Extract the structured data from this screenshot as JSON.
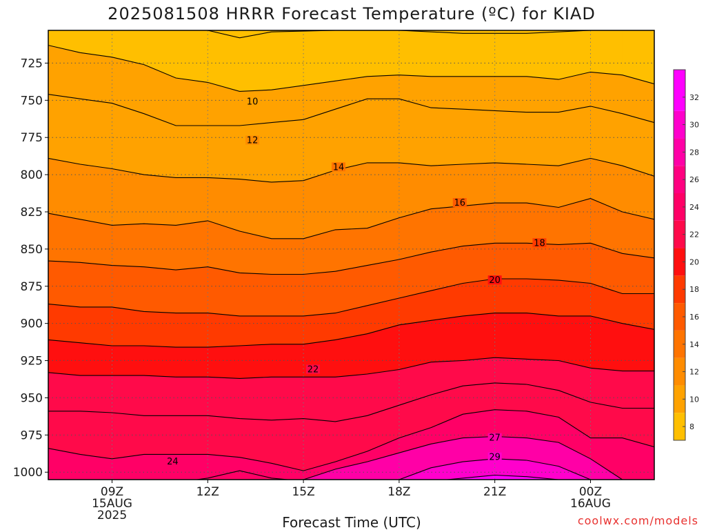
{
  "chart_data": {
    "type": "contour",
    "title": "2025081508 HRRR Forecast Temperature (ºC) for KIAD",
    "xlabel": "Forecast Time (UTC)",
    "ylabel": "",
    "credit": "coolwx.com/models",
    "x_ticks": [
      {
        "value": 9,
        "lines": [
          "09Z",
          "15AUG",
          "2025"
        ]
      },
      {
        "value": 12,
        "lines": [
          "12Z"
        ]
      },
      {
        "value": 15,
        "lines": [
          "15Z"
        ]
      },
      {
        "value": 18,
        "lines": [
          "18Z"
        ]
      },
      {
        "value": 21,
        "lines": [
          "21Z"
        ]
      },
      {
        "value": 24,
        "lines": [
          "00Z",
          "16AUG"
        ]
      }
    ],
    "xlim": [
      7.0,
      26.0
    ],
    "y_ticks": [
      725,
      750,
      775,
      800,
      825,
      850,
      875,
      900,
      925,
      950,
      975,
      1000
    ],
    "ylim": [
      703,
      1005
    ],
    "y_inverted": true,
    "ground_level_hpa": 1005,
    "colorbar": {
      "ticks": [
        8,
        10,
        12,
        14,
        16,
        18,
        20,
        22,
        24,
        26,
        28,
        30,
        32
      ],
      "range": [
        7,
        34
      ],
      "bands": [
        {
          "from": 7,
          "to": 9,
          "color": "#ffbf00"
        },
        {
          "from": 9,
          "to": 11,
          "color": "#ffa200"
        },
        {
          "from": 11,
          "to": 13,
          "color": "#ff8c00"
        },
        {
          "from": 13,
          "to": 15,
          "color": "#ff7400"
        },
        {
          "from": 15,
          "to": 17,
          "color": "#ff5a00"
        },
        {
          "from": 17,
          "to": 19,
          "color": "#ff3a00"
        },
        {
          "from": 19,
          "to": 21,
          "color": "#ff0f0f"
        },
        {
          "from": 21,
          "to": 23,
          "color": "#ff0a4a"
        },
        {
          "from": 23,
          "to": 25,
          "color": "#ff0066"
        },
        {
          "from": 25,
          "to": 27,
          "color": "#ff0080"
        },
        {
          "from": 27,
          "to": 29,
          "color": "#ff00a6"
        },
        {
          "from": 29,
          "to": 31,
          "color": "#ff00cc"
        },
        {
          "from": 31,
          "to": 34,
          "color": "#ff00ff"
        }
      ]
    },
    "isotherms": [
      {
        "value": 8,
        "label_at": null,
        "points": [
          [
            8.5,
            703
          ],
          [
            10,
            703
          ],
          [
            12,
            703
          ],
          [
            13,
            708
          ],
          [
            14,
            704
          ],
          [
            16,
            703
          ],
          [
            18,
            703
          ],
          [
            20,
            705
          ],
          [
            22,
            705
          ],
          [
            24,
            703
          ],
          [
            25,
            703
          ]
        ]
      },
      {
        "value": 9,
        "label_at": null,
        "points": [
          [
            7,
            713
          ],
          [
            8,
            718
          ],
          [
            9,
            721
          ],
          [
            10,
            726
          ],
          [
            11,
            735
          ],
          [
            12,
            738
          ],
          [
            13,
            744
          ],
          [
            14,
            743
          ],
          [
            15,
            740
          ],
          [
            16,
            737
          ],
          [
            17,
            734
          ],
          [
            18,
            733
          ],
          [
            19,
            734
          ],
          [
            20,
            734
          ],
          [
            21,
            734
          ],
          [
            22,
            734
          ],
          [
            23,
            736
          ],
          [
            24,
            731
          ],
          [
            25,
            733
          ],
          [
            26,
            739
          ]
        ]
      },
      {
        "value": 10,
        "label_at": [
          13.4,
          751
        ],
        "points": [
          [
            7,
            746
          ],
          [
            8,
            749
          ],
          [
            9,
            752
          ],
          [
            10,
            759
          ],
          [
            11,
            767
          ],
          [
            12,
            767
          ],
          [
            13,
            767
          ],
          [
            14,
            765
          ],
          [
            15,
            763
          ],
          [
            16,
            756
          ],
          [
            17,
            749
          ],
          [
            18,
            749
          ],
          [
            19,
            755
          ],
          [
            20,
            756
          ],
          [
            21,
            757
          ],
          [
            22,
            758
          ],
          [
            23,
            758
          ],
          [
            24,
            754
          ],
          [
            25,
            759
          ],
          [
            26,
            765
          ]
        ]
      },
      {
        "value": 12,
        "label_at": [
          13.4,
          777
        ],
        "points": [
          [
            7,
            789
          ],
          [
            8,
            793
          ],
          [
            9,
            796
          ],
          [
            10,
            800
          ],
          [
            11,
            802
          ],
          [
            12,
            802
          ],
          [
            13,
            803
          ],
          [
            14,
            805
          ],
          [
            15,
            804
          ],
          [
            16,
            797
          ],
          [
            17,
            792
          ],
          [
            18,
            792
          ],
          [
            19,
            794
          ],
          [
            20,
            793
          ],
          [
            21,
            792
          ],
          [
            22,
            793
          ],
          [
            23,
            794
          ],
          [
            24,
            789
          ],
          [
            25,
            794
          ],
          [
            26,
            801
          ]
        ]
      },
      {
        "value": 14,
        "label_at": [
          16.1,
          795
        ],
        "points": [
          [
            7,
            826
          ],
          [
            8,
            830
          ],
          [
            9,
            834
          ],
          [
            10,
            833
          ],
          [
            11,
            834
          ],
          [
            12,
            831
          ],
          [
            13,
            838
          ],
          [
            14,
            843
          ],
          [
            15,
            843
          ],
          [
            16,
            837
          ],
          [
            17,
            836
          ],
          [
            18,
            829
          ],
          [
            19,
            823
          ],
          [
            20,
            821
          ],
          [
            21,
            819
          ],
          [
            22,
            819
          ],
          [
            23,
            822
          ],
          [
            24,
            816
          ],
          [
            25,
            825
          ],
          [
            26,
            830
          ]
        ]
      },
      {
        "value": 16,
        "label_at": [
          19.9,
          819
        ],
        "points": [
          [
            7,
            858
          ],
          [
            8,
            859
          ],
          [
            9,
            861
          ],
          [
            10,
            862
          ],
          [
            11,
            864
          ],
          [
            12,
            862
          ],
          [
            13,
            866
          ],
          [
            14,
            867
          ],
          [
            15,
            867
          ],
          [
            16,
            865
          ],
          [
            17,
            861
          ],
          [
            18,
            857
          ],
          [
            19,
            852
          ],
          [
            20,
            848
          ],
          [
            21,
            846
          ],
          [
            22,
            846
          ],
          [
            23,
            847
          ],
          [
            24,
            846
          ],
          [
            25,
            853
          ],
          [
            26,
            856
          ]
        ]
      },
      {
        "value": 18,
        "label_at": [
          22.4,
          846
        ],
        "points": [
          [
            7,
            887
          ],
          [
            8,
            889
          ],
          [
            9,
            889
          ],
          [
            10,
            892
          ],
          [
            11,
            893
          ],
          [
            12,
            893
          ],
          [
            13,
            895
          ],
          [
            14,
            895
          ],
          [
            15,
            895
          ],
          [
            16,
            893
          ],
          [
            17,
            888
          ],
          [
            18,
            883
          ],
          [
            19,
            878
          ],
          [
            20,
            873
          ],
          [
            21,
            870
          ],
          [
            22,
            870
          ],
          [
            23,
            871
          ],
          [
            24,
            873
          ],
          [
            25,
            880
          ],
          [
            26,
            880
          ]
        ]
      },
      {
        "value": 20,
        "label_at": [
          21,
          871
        ],
        "points": [
          [
            7,
            911
          ],
          [
            8,
            913
          ],
          [
            9,
            915
          ],
          [
            10,
            915
          ],
          [
            11,
            916
          ],
          [
            12,
            916
          ],
          [
            13,
            915
          ],
          [
            14,
            914
          ],
          [
            15,
            914
          ],
          [
            16,
            911
          ],
          [
            17,
            907
          ],
          [
            18,
            901
          ],
          [
            19,
            898
          ],
          [
            20,
            895
          ],
          [
            21,
            893
          ],
          [
            22,
            893
          ],
          [
            23,
            895
          ],
          [
            24,
            895
          ],
          [
            25,
            900
          ],
          [
            26,
            904
          ]
        ]
      },
      {
        "value": 21,
        "label_at": null,
        "points": [
          [
            7,
            933
          ],
          [
            8,
            935
          ],
          [
            9,
            935
          ],
          [
            10,
            935
          ],
          [
            11,
            936
          ],
          [
            12,
            936
          ],
          [
            13,
            937
          ],
          [
            14,
            936
          ],
          [
            15,
            936
          ],
          [
            16,
            936
          ],
          [
            17,
            934
          ],
          [
            18,
            931
          ],
          [
            19,
            926
          ],
          [
            20,
            925
          ],
          [
            21,
            923
          ],
          [
            22,
            924
          ],
          [
            23,
            925
          ],
          [
            24,
            930
          ],
          [
            25,
            932
          ],
          [
            26,
            932
          ]
        ]
      },
      {
        "value": 22,
        "label_at": [
          15.3,
          931
        ],
        "points": [
          [
            7,
            959
          ],
          [
            8,
            959
          ],
          [
            9,
            960
          ],
          [
            10,
            962
          ],
          [
            11,
            962
          ],
          [
            12,
            962
          ],
          [
            13,
            964
          ],
          [
            14,
            965
          ],
          [
            15,
            964
          ],
          [
            16,
            966
          ],
          [
            17,
            962
          ],
          [
            18,
            955
          ],
          [
            19,
            948
          ],
          [
            20,
            942
          ],
          [
            21,
            940
          ],
          [
            22,
            941
          ],
          [
            23,
            945
          ],
          [
            24,
            953
          ],
          [
            25,
            957
          ],
          [
            26,
            957
          ]
        ]
      },
      {
        "value": 23,
        "label_at": null,
        "points": [
          [
            7,
            984
          ],
          [
            8,
            988
          ],
          [
            9,
            991
          ],
          [
            10,
            988
          ],
          [
            11,
            988
          ],
          [
            12,
            988
          ],
          [
            13,
            990
          ],
          [
            14,
            994
          ],
          [
            15,
            999
          ],
          [
            16,
            993
          ],
          [
            17,
            986
          ],
          [
            18,
            977
          ],
          [
            19,
            970
          ],
          [
            20,
            961
          ],
          [
            21,
            958
          ],
          [
            22,
            959
          ],
          [
            23,
            963
          ],
          [
            24,
            977
          ],
          [
            25,
            977
          ],
          [
            26,
            983
          ]
        ]
      },
      {
        "value": 24,
        "label_at": [
          10.9,
          993
        ],
        "points": [
          [
            7,
            1011
          ],
          [
            8,
            1011
          ],
          [
            9,
            1011
          ],
          [
            10,
            1009
          ],
          [
            11,
            1007
          ],
          [
            12,
            1004
          ],
          [
            13,
            999
          ],
          [
            14,
            1004
          ],
          [
            15,
            1006
          ]
        ]
      },
      {
        "value": 27,
        "label_at": [
          21,
          977
        ],
        "points": [
          [
            15,
            1005
          ],
          [
            16,
            998
          ],
          [
            17,
            993
          ],
          [
            18,
            987
          ],
          [
            19,
            981
          ],
          [
            20,
            977
          ],
          [
            21,
            976
          ],
          [
            22,
            977
          ],
          [
            23,
            980
          ],
          [
            24,
            991
          ],
          [
            25,
            1005
          ]
        ]
      },
      {
        "value": 29,
        "label_at": [
          21,
          990
        ],
        "points": [
          [
            18,
            1005
          ],
          [
            19,
            997
          ],
          [
            20,
            993
          ],
          [
            21,
            991
          ],
          [
            22,
            992
          ],
          [
            23,
            996
          ],
          [
            24,
            1005
          ]
        ]
      },
      {
        "value": 32,
        "label_at": null,
        "points": [
          [
            19.5,
            1005
          ],
          [
            20.5,
            1003
          ],
          [
            21,
            1002
          ],
          [
            22,
            1003
          ],
          [
            23,
            1005
          ]
        ]
      }
    ]
  }
}
